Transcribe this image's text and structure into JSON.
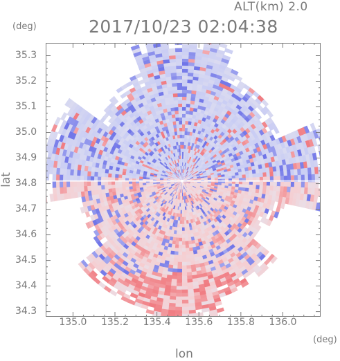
{
  "header": {
    "altitude": "ALT(km) 2.0",
    "datetime": "2017/10/23 02:04:38"
  },
  "axes": {
    "y_unit": "(deg)",
    "x_unit": "(deg)",
    "xlabel": "lon",
    "ylabel": "lat",
    "xlim": [
      134.87,
      136.18
    ],
    "ylim": [
      34.28,
      35.35
    ],
    "x_ticks": [
      "135.0",
      "135.2",
      "135.4",
      "135.6",
      "135.8",
      "136.0"
    ],
    "x_tick_values": [
      135.0,
      135.2,
      135.4,
      135.6,
      135.8,
      136.0
    ],
    "y_ticks": [
      "35.3",
      "35.2",
      "35.1",
      "35.0",
      "34.9",
      "34.8",
      "34.7",
      "34.6",
      "34.5",
      "34.4",
      "34.3"
    ],
    "y_tick_values": [
      35.3,
      35.2,
      35.1,
      35.0,
      34.9,
      34.8,
      34.7,
      34.6,
      34.5,
      34.4,
      34.3
    ]
  },
  "colors": {
    "axis": "#7a7a7a",
    "toward": "#6f74e8",
    "toward_light": "#c9cdf4",
    "away": "#f07a80",
    "away_light": "#f6cdd0",
    "neutral": "#e6e4ee"
  },
  "radar": {
    "center_lon": 135.52,
    "center_lat": 34.81
  }
}
